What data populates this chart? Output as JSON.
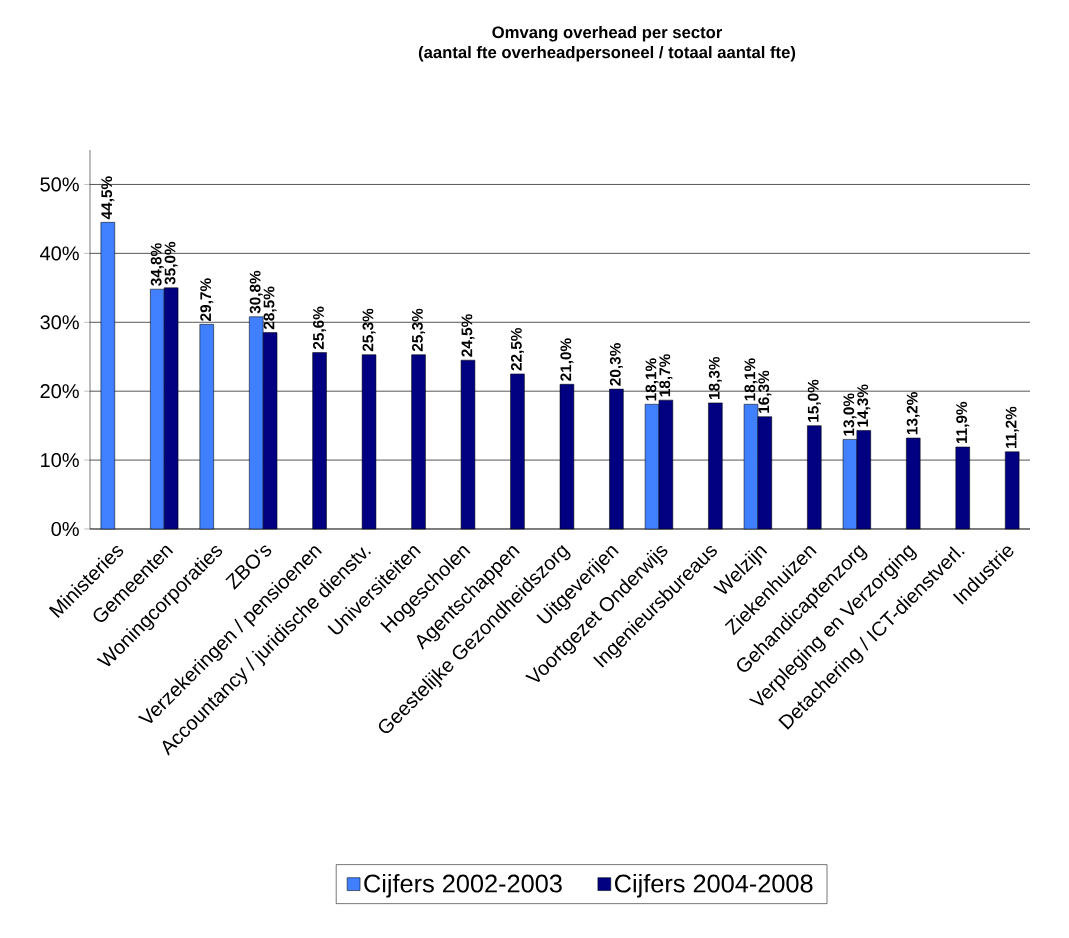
{
  "chart_data": {
    "type": "bar",
    "title": "Omvang overhead per sector\n(aantal fte overheadpersoneel / totaal aantal fte)",
    "categories": [
      "Ministeries",
      "Gemeenten",
      "Woningcorporaties",
      "ZBO's",
      "Verzekeringen / pensioenen",
      "Accountancy / juridische dienstv.",
      "Universiteiten",
      "Hogescholen",
      "Agentschappen",
      "Geestelijke Gezondheidszorg",
      "Uitgeverijen",
      "Voortgezet Onderwijs",
      "Ingenieursbureaus",
      "Welzijn",
      "Ziekenhuizen",
      "Gehandicaptenzorg",
      "Verpleging en Verzorging",
      "Detachering / ICT-dienstverl.",
      "Industrie"
    ],
    "series": [
      {
        "name": "Cijfers 2002-2003",
        "color": "#4080ff",
        "values": [
          44.5,
          34.8,
          29.7,
          30.8,
          null,
          null,
          null,
          null,
          null,
          null,
          null,
          18.1,
          null,
          18.1,
          null,
          13.0,
          null,
          null,
          null
        ],
        "value_labels": [
          "44,5%",
          "34,8%",
          "29,7%",
          "30,8%",
          null,
          null,
          null,
          null,
          null,
          null,
          null,
          "18,1%",
          null,
          "18,1%",
          null,
          "13,0%",
          null,
          null,
          null
        ]
      },
      {
        "name": "Cijfers 2004-2008",
        "color": "#000080",
        "values": [
          null,
          35.0,
          null,
          28.5,
          25.6,
          25.3,
          25.3,
          24.5,
          22.5,
          21.0,
          20.3,
          18.7,
          18.3,
          16.3,
          15.0,
          14.3,
          13.2,
          11.9,
          11.2
        ],
        "value_labels": [
          null,
          "35,0%",
          null,
          "28,5%",
          "25,6%",
          "25,3%",
          "25,3%",
          "24,5%",
          "22,5%",
          "21,0%",
          "20,3%",
          "18,7%",
          "18,3%",
          "16,3%",
          "15,0%",
          "14,3%",
          "13,2%",
          "11,9%",
          "11,2%"
        ]
      }
    ],
    "ylim": [
      0,
      55
    ],
    "yticks": [
      {
        "value": 0,
        "label": "0%"
      },
      {
        "value": 10,
        "label": "10%"
      },
      {
        "value": 20,
        "label": "20%"
      },
      {
        "value": 30,
        "label": "30%"
      },
      {
        "value": 40,
        "label": "40%"
      },
      {
        "value": 50,
        "label": "50%"
      }
    ],
    "grid": "y",
    "legend": "bottom"
  }
}
